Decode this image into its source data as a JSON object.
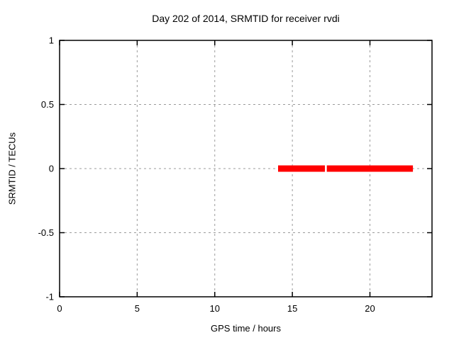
{
  "chart": {
    "title": "Day 202 of 2014, SRMTID for receiver rvdi",
    "xlabel": "GPS time / hours",
    "ylabel": "SRMTID / TECUs"
  },
  "chart_data": {
    "type": "line",
    "title": "Day 202 of 2014, SRMTID for receiver rvdi",
    "xlabel": "GPS time / hours",
    "ylabel": "SRMTID / TECUs",
    "xlim": [
      0,
      24
    ],
    "ylim": [
      -1,
      1
    ],
    "xticks": [
      0,
      5,
      10,
      15,
      20
    ],
    "xtick_labels": [
      "0",
      "5",
      "10",
      "15",
      "20"
    ],
    "yticks": [
      1,
      0.5,
      0,
      -0.5,
      -1
    ],
    "ytick_labels": [
      "1",
      "0.5",
      "0",
      "-0.5",
      "-1"
    ],
    "grid": true,
    "legend": "none",
    "series": [
      {
        "name": "SRMTID",
        "color": "#ff0000",
        "linewidth": 9,
        "segments": [
          {
            "y": 0,
            "x_start": 14.08,
            "x_end": 17.1
          },
          {
            "y": 0,
            "x_start": 17.22,
            "x_end": 22.77
          }
        ]
      }
    ],
    "colors": {
      "frame": "#000000",
      "grid": "#9b9b9b",
      "text": "#000000",
      "background": "#ffffff",
      "series_red": "#ff0000"
    }
  }
}
